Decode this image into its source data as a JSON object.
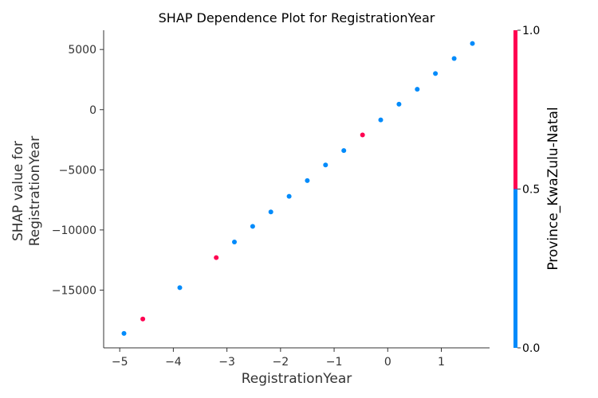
{
  "chart_data": {
    "type": "scatter",
    "title": "SHAP Dependence Plot for RegistrationYear",
    "xlabel": "RegistrationYear",
    "ylabel_lines": [
      "SHAP value for",
      "RegistrationYear"
    ],
    "xlim": [
      -5.3,
      1.9
    ],
    "ylim": [
      -19800,
      6600
    ],
    "xticks": [
      -5,
      -4,
      -3,
      -2,
      -1,
      0,
      1
    ],
    "xtick_labels": [
      "−5",
      "−4",
      "−3",
      "−2",
      "−1",
      "0",
      "1"
    ],
    "yticks": [
      5000,
      0,
      -5000,
      -10000,
      -15000
    ],
    "ytick_labels": [
      "5000",
      "0",
      "−5000",
      "−10000",
      "−15000"
    ],
    "grid": false,
    "colorbar": {
      "label": "Province_KwaZulu-Natal",
      "ticks": [
        0.0,
        0.5,
        1.0
      ],
      "tick_labels": [
        "0.0",
        "0.5",
        "1.0"
      ],
      "color_low": "#008bfb",
      "color_high": "#ff0051"
    },
    "points": [
      {
        "x": -4.92,
        "y": -18600,
        "c": 0
      },
      {
        "x": -4.57,
        "y": -17400,
        "c": 1
      },
      {
        "x": -3.88,
        "y": -14800,
        "c": 0
      },
      {
        "x": -3.2,
        "y": -12300,
        "c": 1
      },
      {
        "x": -2.86,
        "y": -11000,
        "c": 0
      },
      {
        "x": -2.52,
        "y": -9700,
        "c": 0
      },
      {
        "x": -2.18,
        "y": -8500,
        "c": 0
      },
      {
        "x": -1.84,
        "y": -7200,
        "c": 0
      },
      {
        "x": -1.5,
        "y": -5900,
        "c": 0
      },
      {
        "x": -1.16,
        "y": -4600,
        "c": 0
      },
      {
        "x": -0.82,
        "y": -3400,
        "c": 0
      },
      {
        "x": -0.47,
        "y": -2100,
        "c": 1
      },
      {
        "x": -0.13,
        "y": -850,
        "c": 0
      },
      {
        "x": 0.21,
        "y": 450,
        "c": 0
      },
      {
        "x": 0.55,
        "y": 1700,
        "c": 0
      },
      {
        "x": 0.89,
        "y": 3000,
        "c": 0
      },
      {
        "x": 1.24,
        "y": 4250,
        "c": 0
      },
      {
        "x": 1.58,
        "y": 5500,
        "c": 0
      }
    ]
  }
}
